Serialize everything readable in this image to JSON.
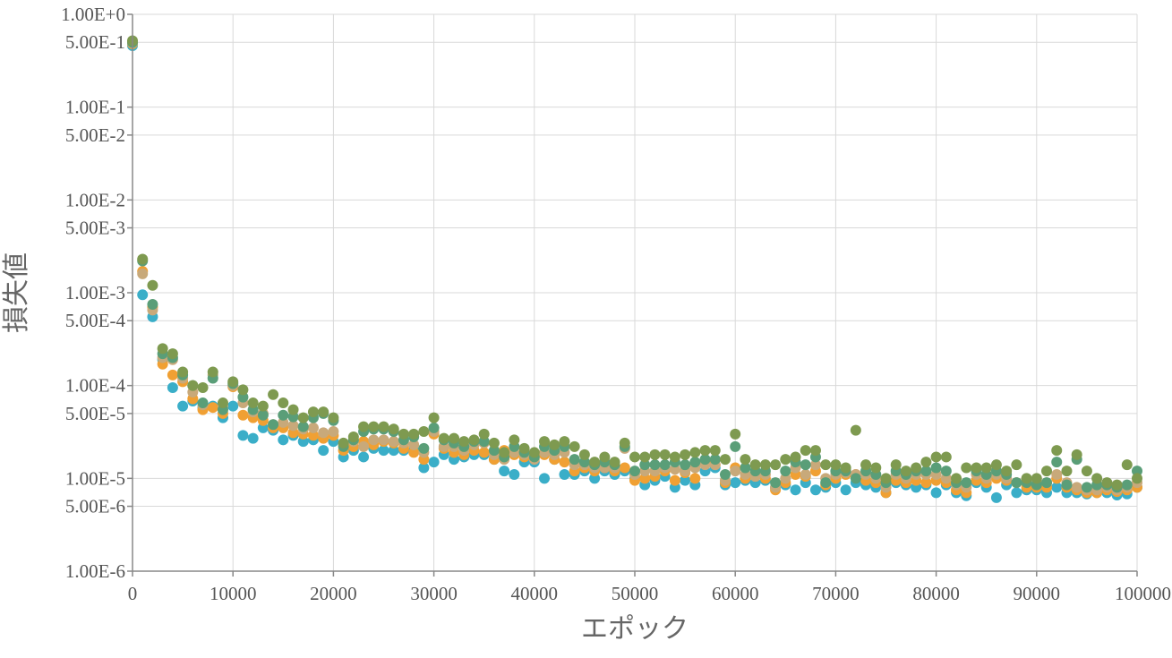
{
  "chart_data": {
    "type": "scatter",
    "xlabel": "エポック",
    "ylabel": "損失値",
    "xlim": [
      0,
      100000
    ],
    "ylim": [
      1e-06,
      1
    ],
    "y_scale": "log",
    "grid": true,
    "x_ticks": [
      "0",
      "10000",
      "20000",
      "30000",
      "40000",
      "50000",
      "60000",
      "70000",
      "80000",
      "90000",
      "100000"
    ],
    "y_ticks": [
      {
        "label": "1.00E+0",
        "value": 1
      },
      {
        "label": "5.00E-1",
        "value": 0.5
      },
      {
        "label": "1.00E-1",
        "value": 0.1
      },
      {
        "label": "5.00E-2",
        "value": 0.05
      },
      {
        "label": "1.00E-2",
        "value": 0.01
      },
      {
        "label": "5.00E-3",
        "value": 0.005
      },
      {
        "label": "1.00E-3",
        "value": 0.001
      },
      {
        "label": "5.00E-4",
        "value": 0.0005
      },
      {
        "label": "1.00E-4",
        "value": 0.0001
      },
      {
        "label": "5.00E-5",
        "value": 5e-05
      },
      {
        "label": "1.00E-5",
        "value": 1e-05
      },
      {
        "label": "5.00E-6",
        "value": 5e-06
      },
      {
        "label": "1.00E-6",
        "value": 1e-06
      }
    ],
    "x": [
      0,
      1000,
      2000,
      3000,
      4000,
      5000,
      6000,
      7000,
      8000,
      9000,
      10000,
      11000,
      12000,
      13000,
      14000,
      15000,
      16000,
      17000,
      18000,
      19000,
      20000,
      21000,
      22000,
      23000,
      24000,
      25000,
      26000,
      27000,
      28000,
      29000,
      30000,
      31000,
      32000,
      33000,
      34000,
      35000,
      36000,
      37000,
      38000,
      39000,
      40000,
      41000,
      42000,
      43000,
      44000,
      45000,
      46000,
      47000,
      48000,
      49000,
      50000,
      51000,
      52000,
      53000,
      54000,
      55000,
      56000,
      57000,
      58000,
      59000,
      60000,
      61000,
      62000,
      63000,
      64000,
      65000,
      66000,
      67000,
      68000,
      69000,
      70000,
      71000,
      72000,
      73000,
      74000,
      75000,
      76000,
      77000,
      78000,
      79000,
      80000,
      81000,
      82000,
      83000,
      84000,
      85000,
      86000,
      87000,
      88000,
      89000,
      90000,
      91000,
      92000,
      93000,
      94000,
      95000,
      96000,
      97000,
      98000,
      99000,
      100000
    ],
    "series": [
      {
        "color": "#3aaec8",
        "values": [
          0.46,
          0.00095,
          0.00055,
          0.00019,
          9.5e-05,
          6e-05,
          6.8e-05,
          5.8e-05,
          6e-05,
          4.5e-05,
          6e-05,
          2.9e-05,
          2.7e-05,
          3.5e-05,
          3.3e-05,
          2.6e-05,
          2.9e-05,
          2.5e-05,
          2.6e-05,
          2e-05,
          2.5e-05,
          1.7e-05,
          2e-05,
          1.7e-05,
          2.1e-05,
          2e-05,
          2e-05,
          2e-05,
          2e-05,
          1.3e-05,
          1.5e-05,
          1.8e-05,
          1.6e-05,
          1.7e-05,
          1.8e-05,
          1.8e-05,
          1.6e-05,
          1.2e-05,
          1.1e-05,
          1.5e-05,
          1.5e-05,
          1e-05,
          1.6e-05,
          1.1e-05,
          1.1e-05,
          1.2e-05,
          1e-05,
          1.2e-05,
          1.1e-05,
          1.2e-05,
          1e-05,
          8.5e-06,
          9.5e-06,
          1.05e-05,
          8e-06,
          9.5e-06,
          8.5e-06,
          1.2e-05,
          1.3e-05,
          8.5e-06,
          9e-06,
          9.5e-06,
          9e-06,
          9.5e-06,
          8e-06,
          8.5e-06,
          7.5e-06,
          9e-06,
          7.5e-06,
          8e-06,
          9e-06,
          7.5e-06,
          9e-06,
          8.5e-06,
          8e-06,
          7e-06,
          9e-06,
          8.5e-06,
          8e-06,
          8.5e-06,
          7e-06,
          8.5e-06,
          7e-06,
          6.5e-06,
          9e-06,
          8e-06,
          6.2e-06,
          8.5e-06,
          7e-06,
          7.5e-06,
          7.5e-06,
          7e-06,
          8e-06,
          7e-06,
          7e-06,
          6.8e-06,
          7e-06,
          7e-06,
          6.6e-06,
          6.8e-06,
          8e-06
        ]
      },
      {
        "color": "#f0a033",
        "values": [
          0.48,
          0.0017,
          0.0007,
          0.00017,
          0.00013,
          0.00011,
          7.2e-05,
          5.5e-05,
          5.8e-05,
          5e-05,
          9.7e-05,
          4.8e-05,
          4.5e-05,
          4.2e-05,
          3.5e-05,
          3.5e-05,
          3.1e-05,
          3e-05,
          2.9e-05,
          2.7e-05,
          2.9e-05,
          2e-05,
          2.2e-05,
          2.5e-05,
          2.3e-05,
          2.5e-05,
          2.4e-05,
          2.1e-05,
          1.9e-05,
          1.6e-05,
          3e-05,
          2.1e-05,
          1.9e-05,
          1.8e-05,
          2e-05,
          1.9e-05,
          1.6e-05,
          2e-05,
          1.8e-05,
          1.7e-05,
          1.7e-05,
          1.8e-05,
          1.6e-05,
          1.5e-05,
          1.2e-05,
          1.3e-05,
          1.2e-05,
          1.3e-05,
          1.2e-05,
          1.3e-05,
          9.5e-06,
          1e-05,
          1.05e-05,
          1.2e-05,
          9.5e-06,
          1.15e-05,
          1e-05,
          1.5e-05,
          1.4e-05,
          9e-06,
          1.3e-05,
          1e-05,
          1.05e-05,
          1e-05,
          7.5e-06,
          9e-06,
          1.1e-05,
          1.05e-05,
          1.2e-05,
          8.5e-06,
          1e-05,
          1.1e-05,
          1.1e-05,
          9.5e-06,
          9e-06,
          7e-06,
          9.5e-06,
          9e-06,
          9.5e-06,
          9e-06,
          9.5e-06,
          9e-06,
          7.5e-06,
          7e-06,
          9.5e-06,
          9e-06,
          1e-05,
          9.5e-06,
          9e-06,
          8e-06,
          8e-06,
          8e-06,
          1e-05,
          8e-06,
          7.5e-06,
          7e-06,
          7e-06,
          7.5e-06,
          7.2e-06,
          7.5e-06,
          8e-06
        ]
      },
      {
        "color": "#c8a97a",
        "values": [
          0.49,
          0.0016,
          0.00065,
          0.0002,
          0.00019,
          0.00012,
          8.5e-05,
          6.2e-05,
          0.00013,
          6e-05,
          0.0001,
          6.5e-05,
          5.2e-05,
          5e-05,
          3.8e-05,
          4e-05,
          3.7e-05,
          3.4e-05,
          3.5e-05,
          3.1e-05,
          3.2e-05,
          2.3e-05,
          2.5e-05,
          2.2e-05,
          2.6e-05,
          2.6e-05,
          2.5e-05,
          2.4e-05,
          2.3e-05,
          1.9e-05,
          3.2e-05,
          2.2e-05,
          2.2e-05,
          2e-05,
          2.3e-05,
          2.4e-05,
          1.8e-05,
          1.6e-05,
          1.9e-05,
          1.8e-05,
          1.6e-05,
          1.9e-05,
          1.8e-05,
          1.9e-05,
          1.4e-05,
          1.4e-05,
          1.3e-05,
          1.3e-05,
          1.3e-05,
          2.1e-05,
          1.1e-05,
          1.2e-05,
          1.2e-05,
          1.3e-05,
          1.25e-05,
          1.2e-05,
          1.3e-05,
          1.4e-05,
          1.4e-05,
          9.5e-06,
          1.2e-05,
          1.1e-05,
          1.05e-05,
          1.1e-05,
          8e-06,
          1e-05,
          1.3e-05,
          1.1e-05,
          1.4e-05,
          1e-05,
          1.1e-05,
          1.15e-05,
          1.1e-05,
          1.1e-05,
          1e-05,
          8e-06,
          1.1e-05,
          1e-05,
          1.1e-05,
          1.1e-05,
          1.1e-05,
          1e-05,
          8.5e-06,
          8e-06,
          1.1e-05,
          1e-05,
          1.1e-05,
          1e-05,
          9e-06,
          9.5e-06,
          9e-06,
          9e-06,
          1.1e-05,
          9e-06,
          8e-06,
          7.5e-06,
          7.5e-06,
          8e-06,
          7.5e-06,
          8e-06,
          9e-06
        ]
      },
      {
        "color": "#5a9e78",
        "values": [
          0.5,
          0.0022,
          0.00075,
          0.00022,
          0.0002,
          0.00013,
          0.0001,
          6.5e-05,
          0.00012,
          5.5e-05,
          0.000105,
          7.5e-05,
          5.5e-05,
          4.8e-05,
          3.8e-05,
          4.8e-05,
          4.6e-05,
          3.6e-05,
          4.5e-05,
          5e-05,
          4.2e-05,
          2.2e-05,
          2.6e-05,
          3.2e-05,
          3.4e-05,
          3.4e-05,
          3.2e-05,
          2.6e-05,
          2.8e-05,
          2.1e-05,
          3.5e-05,
          2.6e-05,
          2.4e-05,
          2.2e-05,
          2.5e-05,
          2.5e-05,
          2e-05,
          1.7e-05,
          2.2e-05,
          1.9e-05,
          1.7e-05,
          2.2e-05,
          2e-05,
          2.2e-05,
          1.6e-05,
          1.5e-05,
          1.4e-05,
          1.5e-05,
          1.4e-05,
          2.2e-05,
          1.2e-05,
          1.4e-05,
          1.4e-05,
          1.4e-05,
          1.5e-05,
          1.4e-05,
          1.5e-05,
          1.6e-05,
          1.6e-05,
          1.1e-05,
          2.2e-05,
          1.3e-05,
          1.2e-05,
          1.2e-05,
          9e-06,
          1.2e-05,
          1.5e-05,
          1.4e-05,
          1.7e-05,
          9e-06,
          1.2e-05,
          1.2e-05,
          1e-05,
          1.2e-05,
          1.1e-05,
          9e-06,
          1.2e-05,
          1.1e-05,
          1.2e-05,
          1.2e-05,
          1.3e-05,
          1.2e-05,
          9e-06,
          9e-06,
          1.2e-05,
          1.1e-05,
          1.2e-05,
          1.1e-05,
          9e-06,
          9e-06,
          8.5e-06,
          9e-06,
          1.5e-05,
          8.5e-06,
          1.6e-05,
          8e-06,
          8.5e-06,
          8.5e-06,
          8e-06,
          8.5e-06,
          1.2e-05
        ]
      },
      {
        "color": "#7e9a50",
        "values": [
          0.52,
          0.0023,
          0.0012,
          0.00025,
          0.00022,
          0.00014,
          0.0001,
          9.5e-05,
          0.00014,
          6.5e-05,
          0.00011,
          9e-05,
          6.5e-05,
          6e-05,
          8e-05,
          6.5e-05,
          5.5e-05,
          4.5e-05,
          5.2e-05,
          5.2e-05,
          4.5e-05,
          2.4e-05,
          2.8e-05,
          3.6e-05,
          3.6e-05,
          3.6e-05,
          3.4e-05,
          3e-05,
          3e-05,
          3.2e-05,
          4.5e-05,
          2.7e-05,
          2.7e-05,
          2.5e-05,
          2.6e-05,
          3e-05,
          2.4e-05,
          1.9e-05,
          2.6e-05,
          2.1e-05,
          1.9e-05,
          2.5e-05,
          2.3e-05,
          2.5e-05,
          2.2e-05,
          1.8e-05,
          1.5e-05,
          1.7e-05,
          1.5e-05,
          2.4e-05,
          1.7e-05,
          1.7e-05,
          1.8e-05,
          1.8e-05,
          1.7e-05,
          1.8e-05,
          1.9e-05,
          2e-05,
          2e-05,
          1.6e-05,
          3e-05,
          1.6e-05,
          1.4e-05,
          1.4e-05,
          1.4e-05,
          1.6e-05,
          1.7e-05,
          2e-05,
          2e-05,
          1.4e-05,
          1.4e-05,
          1.3e-05,
          3.3e-05,
          1.4e-05,
          1.3e-05,
          1e-05,
          1.4e-05,
          1.2e-05,
          1.3e-05,
          1.5e-05,
          1.7e-05,
          1.7e-05,
          1e-05,
          1.3e-05,
          1.3e-05,
          1.3e-05,
          1.4e-05,
          1.2e-05,
          1.4e-05,
          1e-05,
          1e-05,
          1.2e-05,
          2e-05,
          1.2e-05,
          1.8e-05,
          1.2e-05,
          1e-05,
          9e-06,
          8.5e-06,
          1.4e-05,
          1e-05
        ]
      }
    ]
  }
}
